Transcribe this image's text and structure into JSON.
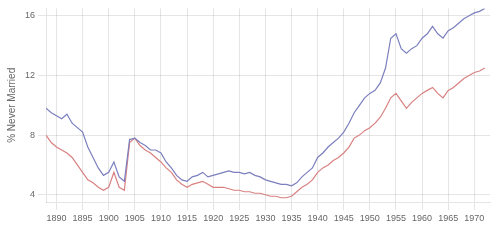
{
  "chart_data": {
    "type": "line",
    "ylabel": "% Never Married",
    "x": [
      1888,
      1889,
      1890,
      1891,
      1892,
      1893,
      1894,
      1895,
      1896,
      1897,
      1898,
      1899,
      1900,
      1901,
      1902,
      1903,
      1904,
      1905,
      1906,
      1907,
      1908,
      1909,
      1910,
      1911,
      1912,
      1913,
      1914,
      1915,
      1916,
      1917,
      1918,
      1919,
      1920,
      1921,
      1922,
      1923,
      1924,
      1925,
      1926,
      1927,
      1928,
      1929,
      1930,
      1931,
      1932,
      1933,
      1934,
      1935,
      1936,
      1937,
      1938,
      1939,
      1940,
      1941,
      1942,
      1943,
      1944,
      1945,
      1946,
      1947,
      1948,
      1949,
      1950,
      1951,
      1952,
      1953,
      1954,
      1955,
      1956,
      1957,
      1958,
      1959,
      1960,
      1961,
      1962,
      1963,
      1964,
      1965,
      1966,
      1967,
      1968,
      1969,
      1970,
      1971,
      1972
    ],
    "series": [
      {
        "color": "#7b7fbe",
        "values": [
          9.8,
          9.5,
          9.3,
          9.1,
          9.4,
          8.8,
          8.5,
          8.2,
          7.2,
          6.5,
          5.8,
          5.3,
          5.5,
          6.2,
          5.2,
          4.9,
          7.7,
          7.8,
          7.5,
          7.3,
          7.0,
          7.0,
          6.8,
          6.2,
          5.8,
          5.3,
          5.0,
          4.9,
          5.2,
          5.3,
          5.5,
          5.2,
          5.3,
          5.4,
          5.5,
          5.6,
          5.5,
          5.5,
          5.4,
          5.5,
          5.3,
          5.2,
          5.0,
          4.9,
          4.8,
          4.7,
          4.7,
          4.6,
          4.8,
          5.2,
          5.5,
          5.8,
          6.5,
          6.8,
          7.2,
          7.5,
          7.8,
          8.2,
          8.8,
          9.5,
          10.0,
          10.5,
          10.8,
          11.0,
          11.5,
          12.5,
          14.5,
          14.8,
          13.8,
          13.5,
          13.8,
          14.0,
          14.5,
          14.8,
          15.3,
          14.8,
          14.5,
          15.0,
          15.2,
          15.5,
          15.8,
          16.0,
          16.2,
          16.3,
          16.5
        ]
      },
      {
        "color": "#d98080",
        "values": [
          8.0,
          7.5,
          7.2,
          7.0,
          6.8,
          6.5,
          6.0,
          5.5,
          5.0,
          4.8,
          4.5,
          4.3,
          4.5,
          5.5,
          4.5,
          4.3,
          7.5,
          7.8,
          7.3,
          7.0,
          6.8,
          6.5,
          6.2,
          5.8,
          5.5,
          5.0,
          4.7,
          4.5,
          4.7,
          4.8,
          4.9,
          4.7,
          4.5,
          4.5,
          4.5,
          4.4,
          4.3,
          4.3,
          4.2,
          4.2,
          4.1,
          4.1,
          4.0,
          3.9,
          3.9,
          3.8,
          3.8,
          3.9,
          4.2,
          4.5,
          4.7,
          5.0,
          5.5,
          5.8,
          6.0,
          6.3,
          6.5,
          6.8,
          7.2,
          7.8,
          8.0,
          8.3,
          8.5,
          8.8,
          9.2,
          9.8,
          10.5,
          10.8,
          10.3,
          9.8,
          10.2,
          10.5,
          10.8,
          11.0,
          11.2,
          10.8,
          10.5,
          11.0,
          11.2,
          11.5,
          11.8,
          12.0,
          12.2,
          12.3,
          12.5
        ]
      }
    ],
    "xlim": [
      1888,
      1973
    ],
    "ylim": [
      3.5,
      16.5
    ],
    "xticks": [
      1890,
      1895,
      1900,
      1905,
      1910,
      1915,
      1920,
      1925,
      1930,
      1935,
      1940,
      1945,
      1950,
      1955,
      1960,
      1965,
      1970
    ],
    "yticks": [
      4,
      8,
      12,
      16
    ],
    "grid": true
  }
}
